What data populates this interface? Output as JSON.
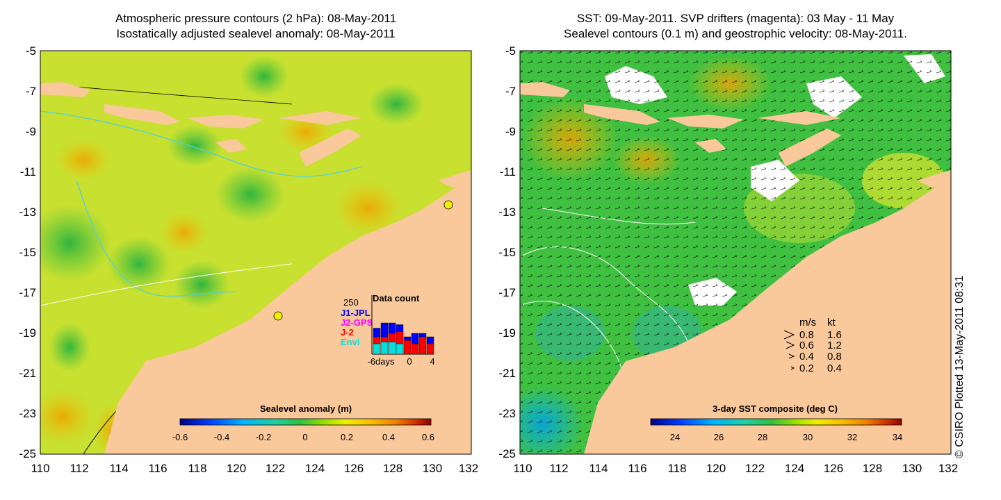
{
  "left_panel": {
    "title_line1": "Atmospheric pressure contours (2 hPa): 08-May-2011",
    "title_line2": "Isostatically adjusted sealevel anomaly: 08-May-2011",
    "lat_labels": [
      "-5",
      "-7",
      "-9",
      "-11",
      "-13",
      "-15",
      "-17",
      "-19",
      "-21",
      "-23",
      "-25"
    ],
    "lon_labels": [
      "110",
      "112",
      "114",
      "116",
      "118",
      "120",
      "122",
      "124",
      "126",
      "128",
      "130",
      "132"
    ],
    "colorbar": {
      "title": "Sealevel anomaly (m)",
      "ticks": [
        "-0.6",
        "-0.4",
        "-0.2",
        "0",
        "0.2",
        "0.4",
        "0.6"
      ],
      "colors": [
        "#00008b",
        "#0040ff",
        "#00b4ff",
        "#20d0a0",
        "#30c040",
        "#a0e000",
        "#f0f000",
        "#f8c000",
        "#f08000",
        "#d03000",
        "#900000"
      ]
    },
    "inset": {
      "title": "Data count",
      "max_label": "250",
      "legend": [
        {
          "label": "J1-JPL",
          "color": "#0000ff"
        },
        {
          "label": "J2-GPS",
          "color": "#ff00ff"
        },
        {
          "label": "J-2",
          "color": "#ff0000"
        },
        {
          "label": "Envi",
          "color": "#00e0e0"
        }
      ],
      "x_labels": [
        "-6days",
        "0",
        "4"
      ],
      "bars": [
        {
          "envi": 30,
          "j2": 20,
          "j1": 25
        },
        {
          "envi": 35,
          "j2": 15,
          "j1": 40
        },
        {
          "envi": 35,
          "j2": 25,
          "j1": 30
        },
        {
          "envi": 30,
          "j2": 35,
          "j1": 20
        },
        {
          "envi": 0,
          "j2": 40,
          "j1": 10
        },
        {
          "envi": 0,
          "j2": 30,
          "j1": 30
        },
        {
          "envi": 0,
          "j2": 50,
          "j1": 10
        },
        {
          "envi": 0,
          "j2": 30,
          "j1": 20
        }
      ]
    }
  },
  "right_panel": {
    "title_line1": "SST: 09-May-2011. SVP drifters (magenta): 03 May - 11 May",
    "title_line2": "Sealevel contours (0.1 m) and geostrophic velocity: 08-May-2011.",
    "lat_labels": [
      "-5",
      "-7",
      "-9",
      "-11",
      "-13",
      "-15",
      "-17",
      "-19",
      "-21",
      "-23",
      "-25"
    ],
    "lon_labels": [
      "110",
      "112",
      "114",
      "116",
      "118",
      "120",
      "122",
      "124",
      "126",
      "128",
      "130",
      "132"
    ],
    "colorbar": {
      "title": "3-day SST composite (deg C)",
      "ticks": [
        "24",
        "26",
        "28",
        "30",
        "32",
        "34"
      ],
      "colors": [
        "#00008b",
        "#0040ff",
        "#00b4ff",
        "#20d0a0",
        "#30c040",
        "#a0e000",
        "#f0f000",
        "#f8c000",
        "#f08000",
        "#d03000",
        "#900000"
      ]
    },
    "speed_legend": {
      "header_ms": "m/s",
      "header_kt": "kt",
      "rows": [
        {
          "ms": "0.8",
          "kt": "1.6"
        },
        {
          "ms": "0.6",
          "kt": "1.2"
        },
        {
          "ms": "0.4",
          "kt": "0.8"
        },
        {
          "ms": "0.2",
          "kt": "0.4"
        }
      ]
    }
  },
  "credit": "© CSIRO Plotted 13-May-2011 08:31",
  "colors": {
    "land": "#f9c89b",
    "sea_left": "#c8e030",
    "sea_right": "#40c040"
  }
}
